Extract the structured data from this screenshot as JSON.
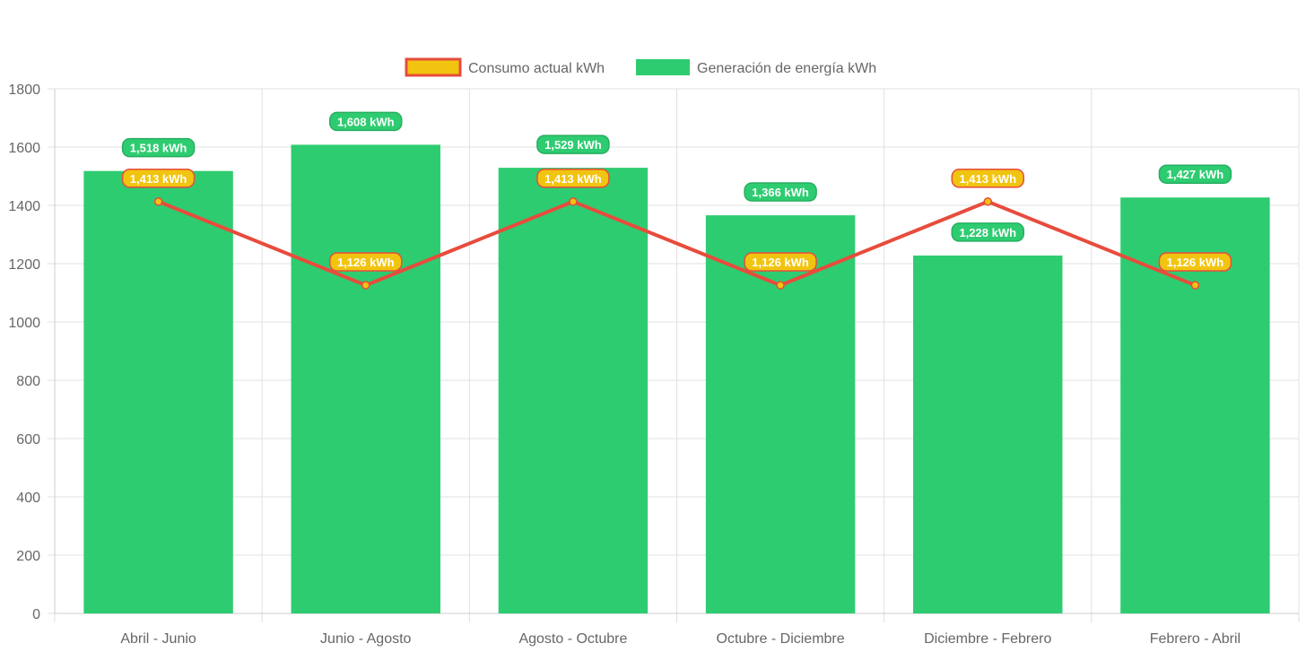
{
  "chart_data": {
    "type": "bar",
    "categories": [
      "Abril - Junio",
      "Junio - Agosto",
      "Agosto - Octubre",
      "Octubre - Diciembre",
      "Diciembre - Febrero",
      "Febrero - Abril"
    ],
    "series": [
      {
        "name": "Consumo actual kWh",
        "type": "line",
        "values": [
          1413,
          1126,
          1413,
          1126,
          1413,
          1126
        ],
        "labels": [
          "1,413 kWh",
          "1,126 kWh",
          "1,413 kWh",
          "1,126 kWh",
          "1,413 kWh",
          "1,126 kWh"
        ],
        "color": "#e74c3c",
        "fill": "#f1c40f"
      },
      {
        "name": "Generación de energía kWh",
        "type": "bar",
        "values": [
          1518,
          1608,
          1529,
          1366,
          1228,
          1427
        ],
        "labels": [
          "1,518 kWh",
          "1,608 kWh",
          "1,529 kWh",
          "1,366 kWh",
          "1,228 kWh",
          "1,427 kWh"
        ],
        "color": "#2ecc71"
      }
    ],
    "ylim": [
      0,
      1800
    ],
    "yticks": [
      "0",
      "200",
      "400",
      "600",
      "800",
      "1000",
      "1200",
      "1400",
      "1600",
      "1800"
    ],
    "grid": true,
    "legend": "top"
  }
}
